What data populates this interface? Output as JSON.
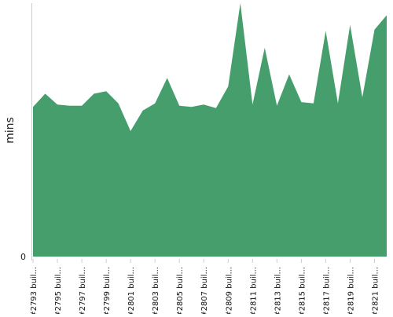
{
  "chart_data": {
    "type": "area",
    "ylabel": "mins",
    "y_tick_labels": [
      "0"
    ],
    "ylim": [
      0,
      21
    ],
    "grid": false,
    "legend": "none",
    "x_tick_labels": [
      "#2793 buil...",
      "#2795 buil...",
      "#2797 buil...",
      "#2799 buil...",
      "#2801 buil...",
      "#2803 buil...",
      "#2805 buil...",
      "#2807 buil...",
      "#2809 buil...",
      "#2811 buil...",
      "#2813 buil...",
      "#2815 buil...",
      "#2817 buil...",
      "#2819 buil...",
      "#2821 buil..."
    ],
    "series": [
      {
        "color": "#459e6c",
        "points": [
          [
            0,
            12.4
          ],
          [
            1,
            13.5
          ],
          [
            2,
            12.6
          ],
          [
            3,
            12.5
          ],
          [
            4,
            12.5
          ],
          [
            5,
            13.5
          ],
          [
            6,
            13.7
          ],
          [
            7,
            12.7
          ],
          [
            8,
            10.4
          ],
          [
            9,
            12.1
          ],
          [
            10,
            12.7
          ],
          [
            11,
            14.8
          ],
          [
            12,
            12.5
          ],
          [
            13,
            12.4
          ],
          [
            14,
            12.6
          ],
          [
            15,
            12.3
          ],
          [
            16,
            14.1
          ],
          [
            17,
            21.0
          ],
          [
            18,
            12.6
          ],
          [
            19,
            17.3
          ],
          [
            20,
            12.5
          ],
          [
            21,
            15.1
          ],
          [
            22,
            12.8
          ],
          [
            23,
            12.7
          ],
          [
            24,
            18.7
          ],
          [
            25,
            12.7
          ],
          [
            26,
            19.2
          ],
          [
            27,
            13.2
          ],
          [
            28,
            18.8
          ],
          [
            29,
            20.0
          ]
        ]
      }
    ]
  }
}
